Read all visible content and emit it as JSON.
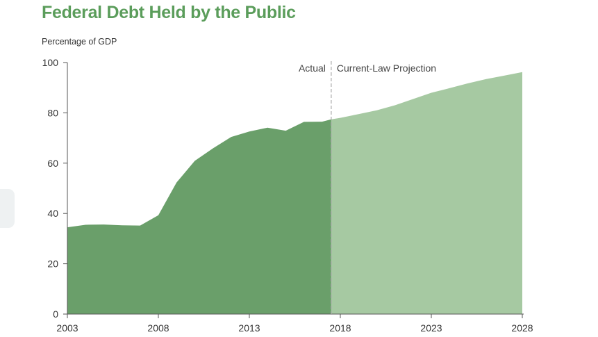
{
  "chart_data": {
    "type": "area",
    "title": "Federal Debt Held by the Public",
    "ylabel": "Percentage of GDP",
    "xlabel": "",
    "xlim": [
      2003,
      2028
    ],
    "ylim": [
      0,
      100
    ],
    "x_ticks": [
      "2003",
      "2008",
      "2013",
      "2018",
      "2023",
      "2028"
    ],
    "y_ticks": [
      "0",
      "20",
      "40",
      "60",
      "80",
      "100"
    ],
    "grid": false,
    "divider_x": 2017.5,
    "annotations": {
      "left": "Actual",
      "right": "Current-Law Projection"
    },
    "series": [
      {
        "segment": "actual",
        "color": "#6a9f6a",
        "x": [
          2003,
          2004,
          2005,
          2006,
          2007,
          2008,
          2009,
          2010,
          2011,
          2012,
          2013,
          2014,
          2015,
          2016,
          2017,
          2017.5
        ],
        "y": [
          34.5,
          35.5,
          35.6,
          35.3,
          35.2,
          39.3,
          52.3,
          60.9,
          65.9,
          70.4,
          72.6,
          74.1,
          72.9,
          76.4,
          76.5,
          77.4
        ]
      },
      {
        "segment": "projection",
        "color": "#a6c9a2",
        "x": [
          2017.5,
          2018,
          2019,
          2020,
          2021,
          2022,
          2023,
          2024,
          2025,
          2026,
          2027,
          2028
        ],
        "y": [
          77.4,
          78.0,
          79.5,
          81.0,
          83.0,
          85.5,
          88.0,
          89.8,
          91.7,
          93.4,
          94.8,
          96.2
        ]
      }
    ]
  }
}
